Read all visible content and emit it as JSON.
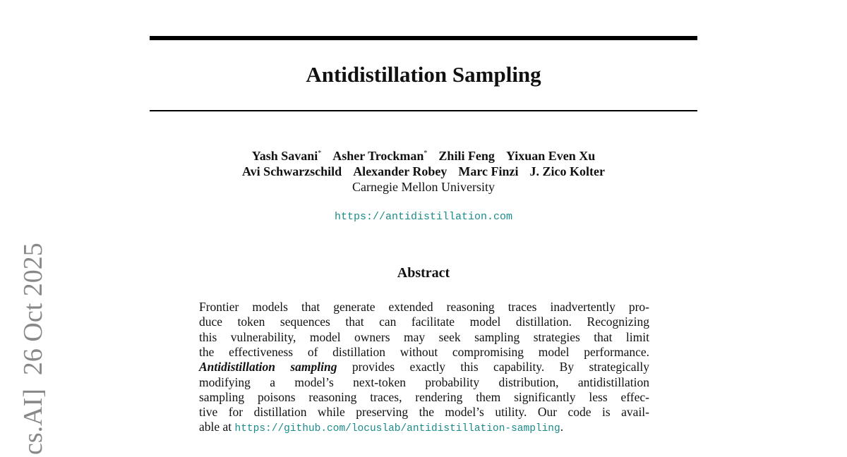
{
  "side_stamp": "cs.AI]  26 Oct 2025",
  "header": {
    "title": "Antidistillation Sampling"
  },
  "authors": {
    "rows": [
      [
        {
          "name": "Yash Savani",
          "mark": "*"
        },
        {
          "name": "Asher Trockman",
          "mark": "*"
        },
        {
          "name": "Zhili Feng"
        },
        {
          "name": "Yixuan Even Xu"
        }
      ],
      [
        {
          "name": "Avi Schwarzschild"
        },
        {
          "name": "Alexander Robey"
        },
        {
          "name": "Marc Finzi"
        },
        {
          "name": "J. Zico Kolter"
        }
      ]
    ],
    "affiliation": "Carnegie Mellon University",
    "url": "https://antidistillation.com"
  },
  "abstract": {
    "heading": "Abstract",
    "lines": [
      "Frontier models that generate extended reasoning traces inadvertently pro-",
      "duce token sequences that can facilitate model distillation.  Recognizing",
      "this vulnerability, model owners may seek sampling strategies that limit",
      "the effectiveness of distillation without compromising model performance.",
      {
        "emphasis": "Antidistillation sampling",
        "text": " provides exactly this capability. By strategically"
      },
      "modifying a model’s next-token probability distribution, antidistillation",
      "sampling poisons reasoning traces, rendering them significantly less effec-",
      "tive for distillation while preserving the model’s utility. Our code is avail-",
      {
        "text": "able at ",
        "link": "https://github.com/locuslab/antidistillation-sampling",
        "end": "."
      }
    ]
  }
}
